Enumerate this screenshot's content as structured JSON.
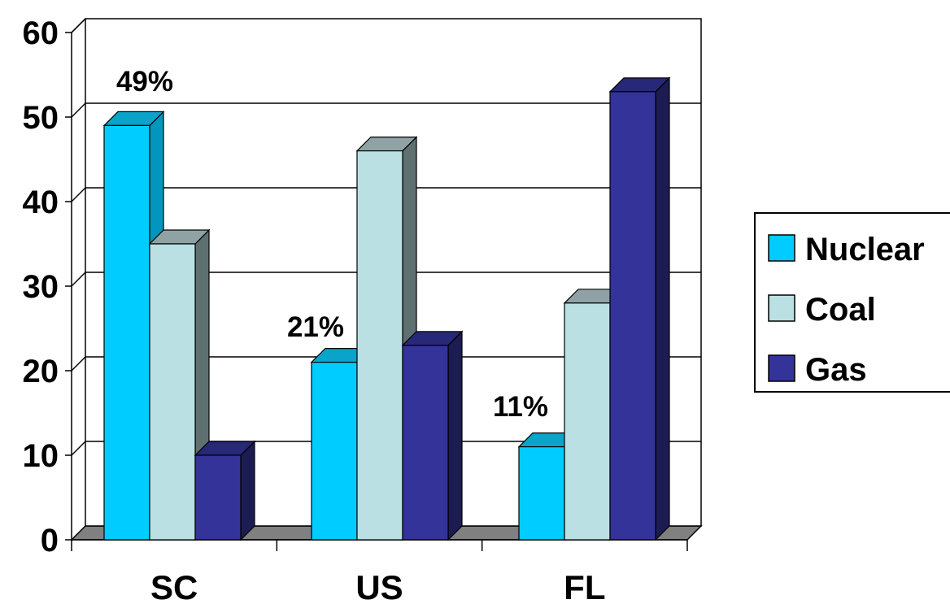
{
  "chart_data": {
    "type": "bar",
    "style": "3d-clustered",
    "categories": [
      "SC",
      "US",
      "FL"
    ],
    "series": [
      {
        "name": "Nuclear",
        "values": [
          49,
          21,
          11
        ],
        "color": "#00ccff",
        "dark_color": "#0096bd"
      },
      {
        "name": "Coal",
        "values": [
          35,
          46,
          28
        ],
        "color": "#bbe0e3",
        "dark_color": "#5f7070"
      },
      {
        "name": "Gas",
        "values": [
          10,
          23,
          53
        ],
        "color": "#333399",
        "dark_color": "#1c1c52"
      }
    ],
    "data_labels": [
      {
        "series": "Nuclear",
        "category": "SC",
        "text": "49%"
      },
      {
        "series": "Nuclear",
        "category": "US",
        "text": "21%"
      },
      {
        "series": "Nuclear",
        "category": "FL",
        "text": "11%"
      }
    ],
    "ylim": [
      0,
      60
    ],
    "yticks": [
      "0",
      "10",
      "20",
      "30",
      "40",
      "50",
      "60"
    ],
    "grid": true,
    "legend_position": "right",
    "title": "",
    "xlabel": "",
    "ylabel": ""
  }
}
